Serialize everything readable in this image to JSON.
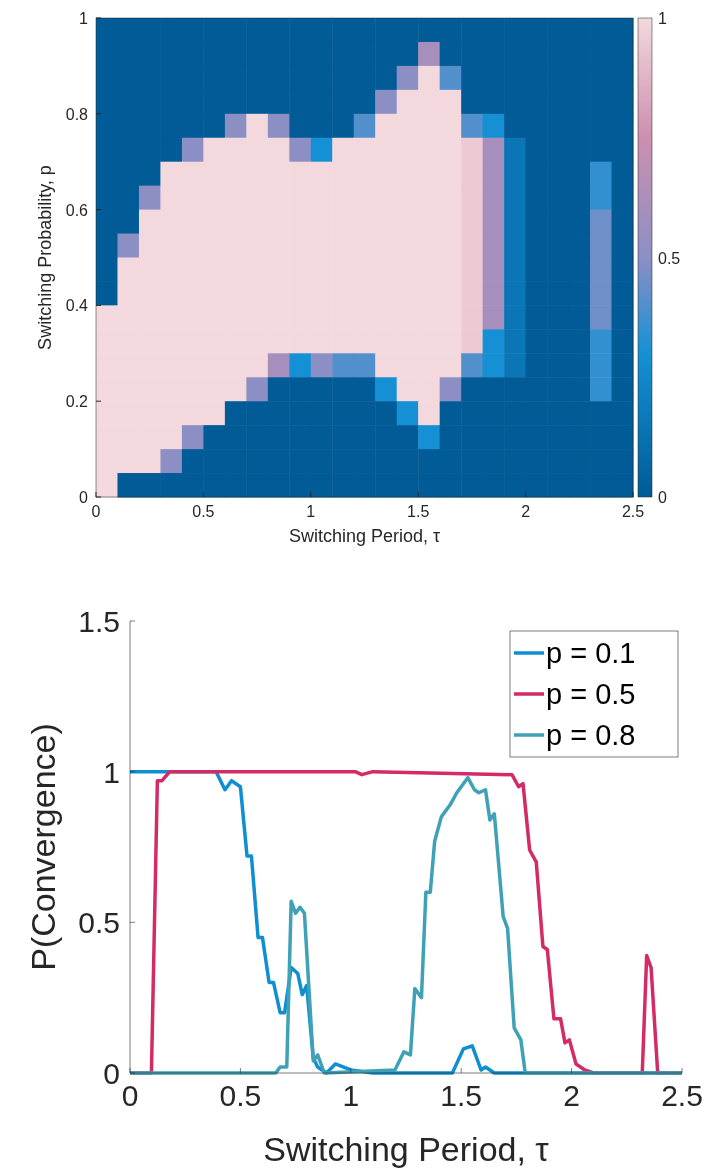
{
  "chart_data": [
    {
      "type": "heatmap",
      "xlabel": "Switching Period, τ",
      "ylabel": "Switching Probability, p",
      "xlim": [
        0,
        2.5
      ],
      "ylim": [
        0,
        1
      ],
      "xticks": [
        0,
        0.5,
        1,
        1.5,
        2,
        2.5
      ],
      "yticks": [
        0,
        0.2,
        0.4,
        0.6,
        0.8,
        1
      ],
      "clim": [
        0,
        1
      ],
      "cticks": [
        0,
        0.5,
        1
      ],
      "cells": [
        [
          0,
          0,
          0,
          0,
          0,
          0,
          0,
          0,
          0,
          0,
          0,
          0,
          0,
          0,
          0,
          0,
          0,
          0,
          0,
          0,
          0,
          0,
          0,
          0,
          0
        ],
        [
          0,
          0,
          0,
          0,
          0,
          0,
          0,
          0,
          0,
          0,
          0,
          0,
          0,
          0,
          0,
          0.6,
          0,
          0,
          0,
          0,
          0,
          0,
          0,
          0,
          0
        ],
        [
          0,
          0,
          0,
          0,
          0,
          0,
          0,
          0,
          0,
          0,
          0,
          0,
          0,
          0,
          0.5,
          1,
          0.4,
          0,
          0,
          0,
          0,
          0,
          0,
          0,
          0
        ],
        [
          0,
          0,
          0,
          0,
          0,
          0,
          0,
          0,
          0,
          0,
          0,
          0,
          0,
          0.5,
          1,
          1,
          1,
          0,
          0,
          0,
          0,
          0,
          0,
          0,
          0
        ],
        [
          0,
          0,
          0,
          0,
          0,
          0,
          0.5,
          1,
          0.5,
          0,
          0,
          0,
          0.4,
          1,
          1,
          1,
          1,
          0.4,
          0.3,
          0,
          0,
          0,
          0,
          0,
          0
        ],
        [
          0,
          0,
          0,
          0,
          0.5,
          1,
          1,
          1,
          1,
          0.5,
          0.3,
          1,
          1,
          1,
          1,
          1,
          1,
          0.95,
          0.6,
          0.15,
          0,
          0,
          0,
          0,
          0
        ],
        [
          0,
          0,
          0,
          1,
          1,
          1,
          1,
          1,
          1,
          1,
          1,
          1,
          1,
          1,
          1,
          1,
          1,
          0.95,
          0.6,
          0.15,
          0,
          0,
          0,
          0.35,
          0
        ],
        [
          0,
          0,
          0.5,
          1,
          1,
          1,
          1,
          1,
          1,
          1,
          1,
          1,
          1,
          1,
          1,
          1,
          1,
          0.95,
          0.6,
          0.15,
          0,
          0,
          0,
          0.35,
          0
        ],
        [
          0,
          0,
          1,
          1,
          1,
          1,
          1,
          1,
          1,
          1,
          1,
          1,
          1,
          1,
          1,
          1,
          1,
          0.95,
          0.6,
          0.15,
          0,
          0,
          0,
          0.45,
          0
        ],
        [
          0,
          0.5,
          1,
          1,
          1,
          1,
          1,
          1,
          1,
          1,
          1,
          1,
          1,
          1,
          1,
          1,
          1,
          0.95,
          0.6,
          0.15,
          0,
          0,
          0,
          0.45,
          0
        ],
        [
          0,
          1,
          1,
          1,
          1,
          1,
          1,
          1,
          1,
          1,
          1,
          1,
          1,
          1,
          1,
          1,
          1,
          0.95,
          0.6,
          0.15,
          0,
          0,
          0,
          0.45,
          0
        ],
        [
          0,
          1,
          1,
          1,
          1,
          1,
          1,
          1,
          1,
          1,
          1,
          1,
          1,
          1,
          1,
          1,
          1,
          0.95,
          0.6,
          0.15,
          0,
          0,
          0,
          0.45,
          0
        ],
        [
          1,
          1,
          1,
          1,
          1,
          1,
          1,
          1,
          1,
          1,
          1,
          1,
          1,
          1,
          1,
          1,
          1,
          0.95,
          0.6,
          0.15,
          0,
          0,
          0,
          0.45,
          0
        ],
        [
          1,
          1,
          1,
          1,
          1,
          1,
          1,
          1,
          1,
          1,
          1,
          1,
          1,
          1,
          1,
          1,
          1,
          0.95,
          0.3,
          0.15,
          0,
          0,
          0,
          0.35,
          0
        ],
        [
          1,
          1,
          1,
          1,
          1,
          1,
          1,
          1,
          0.6,
          0.3,
          0.5,
          0.4,
          0.4,
          1,
          1,
          1,
          1,
          0.4,
          0.3,
          0.15,
          0,
          0,
          0,
          0.35,
          0
        ],
        [
          1,
          1,
          1,
          1,
          1,
          1,
          1,
          0.5,
          0,
          0,
          0,
          0,
          0,
          0.3,
          1,
          1,
          0.5,
          0,
          0,
          0,
          0,
          0,
          0,
          0.35,
          0
        ],
        [
          1,
          1,
          1,
          1,
          1,
          1,
          0,
          0,
          0,
          0,
          0,
          0,
          0,
          0,
          0.3,
          1,
          0,
          0,
          0,
          0,
          0,
          0,
          0,
          0,
          0
        ],
        [
          1,
          1,
          1,
          1,
          0.5,
          0,
          0,
          0,
          0,
          0,
          0,
          0,
          0,
          0,
          0,
          0.3,
          0,
          0,
          0,
          0,
          0,
          0,
          0,
          0,
          0
        ],
        [
          1,
          1,
          1,
          0.5,
          0,
          0,
          0,
          0,
          0,
          0,
          0,
          0,
          0,
          0,
          0,
          0,
          0,
          0,
          0,
          0,
          0,
          0,
          0,
          0,
          0
        ],
        [
          1,
          0,
          0,
          0,
          0,
          0,
          0,
          0,
          0,
          0,
          0,
          0,
          0,
          0,
          0,
          0,
          0,
          0,
          0,
          0,
          0,
          0,
          0,
          0,
          0
        ]
      ]
    },
    {
      "type": "line",
      "xlabel": "Switching Period, τ",
      "ylabel": "P(Convergence)",
      "xlim": [
        0,
        2.5
      ],
      "ylim": [
        0,
        1.5
      ],
      "xticks": [
        0,
        0.5,
        1,
        1.5,
        2,
        2.5
      ],
      "yticks": [
        0,
        0.5,
        1,
        1.5
      ],
      "legend": "top right",
      "line_style": "solid",
      "marker": "none",
      "series": [
        {
          "name": "p = 0.1",
          "color": "#0f8fd2",
          "x": [
            0,
            0.39,
            0.43,
            0.46,
            0.5,
            0.53,
            0.55,
            0.58,
            0.6,
            0.63,
            0.65,
            0.68,
            0.7,
            0.73,
            0.76,
            0.78,
            0.8,
            0.83,
            0.85,
            0.89,
            0.93,
            1,
            1.1,
            1.46,
            1.51,
            1.55,
            1.59,
            1.61,
            1.65,
            2.5
          ],
          "values": [
            1,
            1,
            0.94,
            0.97,
            0.95,
            0.72,
            0.72,
            0.45,
            0.45,
            0.3,
            0.3,
            0.2,
            0.2,
            0.35,
            0.33,
            0.26,
            0.29,
            0.05,
            0.02,
            0,
            0.03,
            0.01,
            0,
            0,
            0.08,
            0.09,
            0.01,
            0.02,
            0,
            0
          ]
        },
        {
          "name": "p = 0.5",
          "color": "#d42a66",
          "x": [
            0,
            0.097,
            0.124,
            0.145,
            0.18,
            1.02,
            1.05,
            1.1,
            1.73,
            1.76,
            1.78,
            1.81,
            1.84,
            1.87,
            1.89,
            1.92,
            1.95,
            1.97,
            1.99,
            2.02,
            2.06,
            2.1,
            2.32,
            2.34,
            2.36,
            2.39,
            2.5
          ],
          "values": [
            0,
            0,
            0.97,
            0.97,
            1,
            1,
            0.99,
            1,
            0.99,
            0.95,
            0.96,
            0.74,
            0.7,
            0.42,
            0.41,
            0.18,
            0.18,
            0.1,
            0.11,
            0.03,
            0.01,
            0,
            0,
            0.39,
            0.35,
            0,
            0
          ]
        },
        {
          "name": "p = 0.8",
          "color": "#3ea1b5",
          "x": [
            0,
            0.66,
            0.68,
            0.71,
            0.73,
            0.75,
            0.77,
            0.79,
            0.83,
            0.85,
            0.88,
            1.2,
            1.24,
            1.27,
            1.29,
            1.32,
            1.34,
            1.36,
            1.38,
            1.41,
            1.45,
            1.48,
            1.53,
            1.56,
            1.58,
            1.61,
            1.63,
            1.65,
            1.69,
            1.71,
            1.74,
            1.77,
            1.79,
            2.5
          ],
          "values": [
            0,
            0,
            0.02,
            0.02,
            0.57,
            0.53,
            0.55,
            0.53,
            0.04,
            0.06,
            0,
            0.01,
            0.07,
            0.06,
            0.28,
            0.25,
            0.6,
            0.6,
            0.77,
            0.85,
            0.89,
            0.93,
            0.98,
            0.94,
            0.93,
            0.94,
            0.84,
            0.86,
            0.52,
            0.48,
            0.15,
            0.11,
            0,
            0
          ]
        }
      ]
    }
  ]
}
